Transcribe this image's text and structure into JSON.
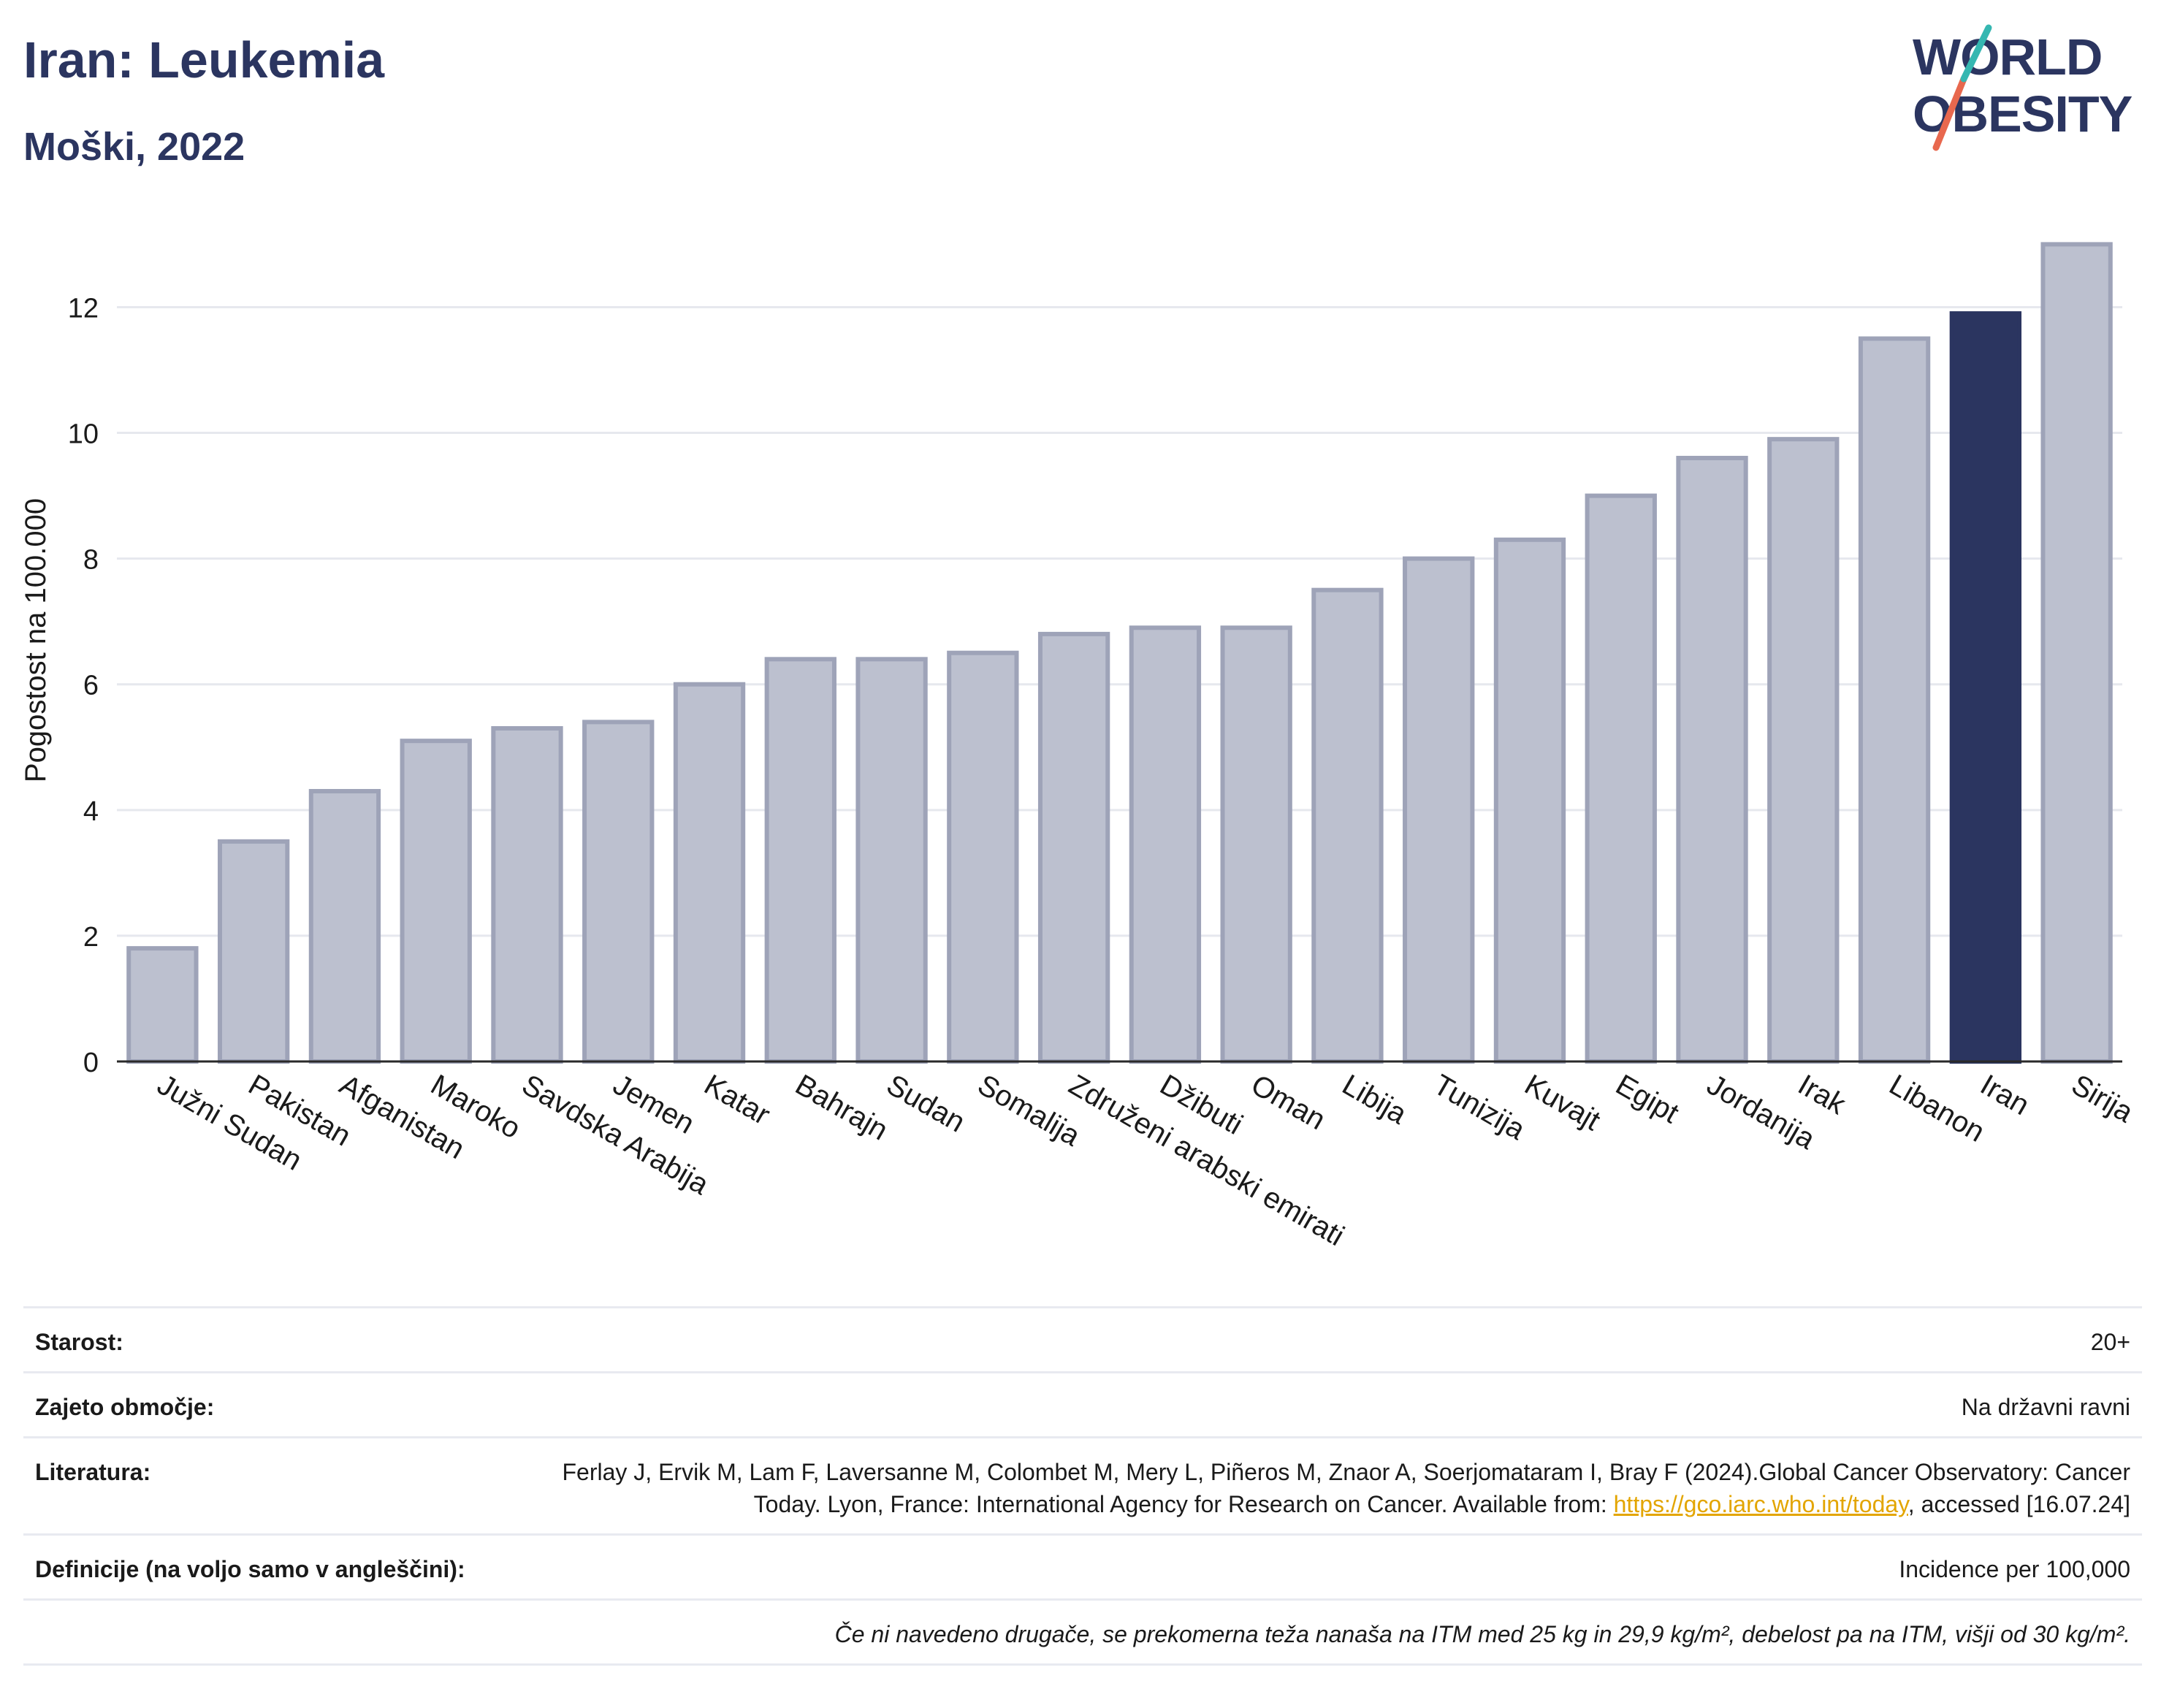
{
  "header": {
    "title": "Iran: Leukemia",
    "subtitle": "Moški, 2022"
  },
  "logo": {
    "line1": "WORLD",
    "line2": "OBESITY",
    "slash_colors": [
      "#e8684e",
      "#35b7b1"
    ]
  },
  "colors": {
    "highlight": "#2b3560",
    "bar": "#bcc0cf",
    "bar_border": "#9ea3b8",
    "grid": "#e6e8ee",
    "axis_text": "#1a1a1a"
  },
  "chart_data": {
    "type": "bar",
    "title": "",
    "xlabel": "",
    "ylabel": "Pogostost na 100.000",
    "ylim": [
      0,
      13.4
    ],
    "yticks": [
      0,
      2,
      4,
      6,
      8,
      10,
      12
    ],
    "grid": true,
    "highlight": "Iran",
    "categories": [
      "Južni Sudan",
      "Pakistan",
      "Afganistan",
      "Maroko",
      "Savdska Arabija",
      "Jemen",
      "Katar",
      "Bahrajn",
      "Sudan",
      "Somalija",
      "Združeni arabski emirati",
      "Džibuti",
      "Oman",
      "Libija",
      "Tunizija",
      "Kuvajt",
      "Egipt",
      "Jordanija",
      "Irak",
      "Libanon",
      "Iran",
      "Sirija"
    ],
    "values": [
      1.8,
      3.5,
      4.3,
      5.1,
      5.3,
      5.4,
      6.0,
      6.4,
      6.4,
      6.5,
      6.8,
      6.9,
      6.9,
      7.5,
      8.0,
      8.3,
      9.0,
      9.6,
      9.9,
      11.5,
      11.9,
      13.0
    ]
  },
  "info": {
    "age_label": "Starost:",
    "age_value": "20+",
    "coverage_label": "Zajeto območje:",
    "coverage_value": "Na državni ravni",
    "reference_label": "Literatura:",
    "reference_text": "Ferlay J, Ervik M, Lam F, Laversanne M, Colombet M, Mery L, Piñeros M, Znaor A, Soerjomataram I, Bray F (2024).Global Cancer Observatory: Cancer Today. Lyon, France: International Agency for Research on Cancer. Available from: ",
    "reference_link": "https://gco.iarc.who.int/today",
    "reference_suffix": ", accessed [16.07.24]",
    "definitions_label": "Definicije (na voljo samo v angleščini):",
    "definitions_value": "Incidence per 100,000",
    "note": "Če ni navedeno drugače, se prekomerna teža nanaša na ITM med 25 kg in 29,9 kg/m², debelost pa na ITM, višji od 30 kg/m²."
  }
}
